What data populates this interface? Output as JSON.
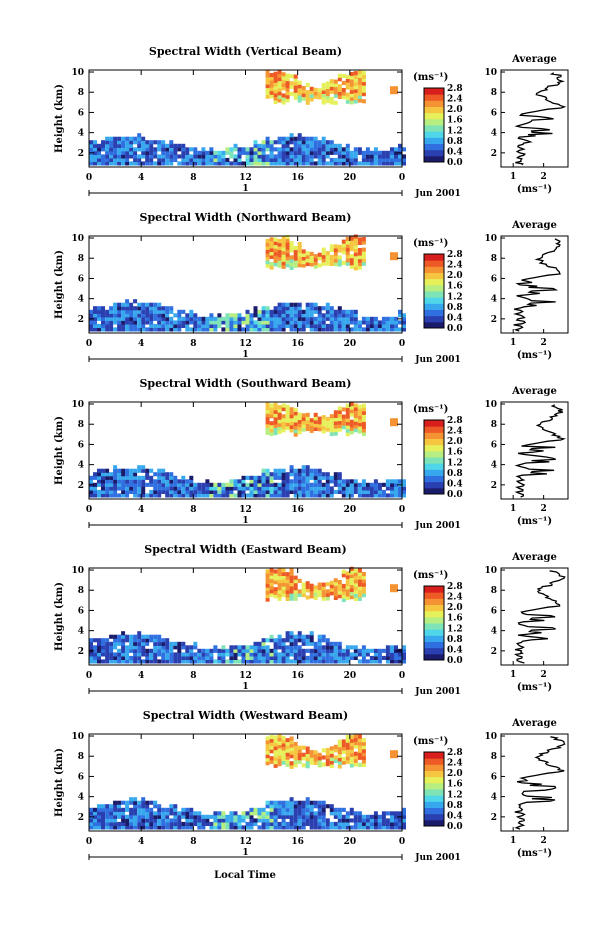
{
  "figure": {
    "x_axis_label": "Local Time",
    "date_label": "Jun 2001",
    "day_label": "1",
    "height_axis_label": "Height (km)",
    "unit_label": "(ms⁻¹)",
    "average_title": "Average"
  },
  "colors": {
    "scale": [
      "#1b1b6b",
      "#2a3fb0",
      "#2f6fe0",
      "#38a8ee",
      "#4fd6e8",
      "#7ee3b6",
      "#b7ee82",
      "#e6f05a",
      "#f6c640",
      "#f59233",
      "#ee5a25",
      "#d91f1d"
    ]
  },
  "chart_data": [
    {
      "type": "heatmap",
      "title": "Spectral Width (Vertical Beam)",
      "x_ticks": [
        "0",
        "4",
        "8",
        "12",
        "16",
        "20",
        "0"
      ],
      "y_ticks": [
        "2",
        "4",
        "6",
        "8",
        "10"
      ],
      "xlim": [
        0,
        24
      ],
      "ylim": [
        0.6,
        10.2
      ],
      "colorbar_ticks": [
        "0.0",
        "0.4",
        "0.8",
        "1.2",
        "1.6",
        "2.0",
        "2.4",
        "2.8"
      ],
      "profile": {
        "x_ticks": [
          "1",
          "2"
        ],
        "y_ticks": [
          "2",
          "4",
          "6",
          "8",
          "10"
        ],
        "xlim": [
          0.6,
          2.8
        ]
      }
    },
    {
      "type": "heatmap",
      "title": "Spectral Width (Northward Beam)",
      "x_ticks": [
        "0",
        "4",
        "8",
        "12",
        "16",
        "20",
        "0"
      ],
      "y_ticks": [
        "2",
        "4",
        "6",
        "8",
        "10"
      ],
      "xlim": [
        0,
        24
      ],
      "ylim": [
        0.6,
        10.2
      ],
      "colorbar_ticks": [
        "0.0",
        "0.4",
        "0.8",
        "1.2",
        "1.6",
        "2.0",
        "2.4",
        "2.8"
      ],
      "profile": {
        "x_ticks": [
          "1",
          "2"
        ],
        "y_ticks": [
          "2",
          "4",
          "6",
          "8",
          "10"
        ],
        "xlim": [
          0.6,
          2.8
        ]
      }
    },
    {
      "type": "heatmap",
      "title": "Spectral Width (Southward Beam)",
      "x_ticks": [
        "0",
        "4",
        "8",
        "12",
        "16",
        "20",
        "0"
      ],
      "y_ticks": [
        "2",
        "4",
        "6",
        "8",
        "10"
      ],
      "xlim": [
        0,
        24
      ],
      "ylim": [
        0.6,
        10.2
      ],
      "colorbar_ticks": [
        "0.0",
        "0.4",
        "0.8",
        "1.2",
        "1.6",
        "2.0",
        "2.4",
        "2.8"
      ],
      "profile": {
        "x_ticks": [
          "1",
          "2"
        ],
        "y_ticks": [
          "2",
          "4",
          "6",
          "8",
          "10"
        ],
        "xlim": [
          0.6,
          2.8
        ]
      }
    },
    {
      "type": "heatmap",
      "title": "Spectral Width (Eastward Beam)",
      "x_ticks": [
        "0",
        "4",
        "8",
        "12",
        "16",
        "20",
        "0"
      ],
      "y_ticks": [
        "2",
        "4",
        "6",
        "8",
        "10"
      ],
      "xlim": [
        0,
        24
      ],
      "ylim": [
        0.6,
        10.2
      ],
      "colorbar_ticks": [
        "0.0",
        "0.4",
        "0.8",
        "1.2",
        "1.6",
        "2.0",
        "2.4",
        "2.8"
      ],
      "profile": {
        "x_ticks": [
          "1",
          "2"
        ],
        "y_ticks": [
          "2",
          "4",
          "6",
          "8",
          "10"
        ],
        "xlim": [
          0.6,
          2.8
        ]
      }
    },
    {
      "type": "heatmap",
      "title": "Spectral Width (Westward Beam)",
      "x_ticks": [
        "0",
        "4",
        "8",
        "12",
        "16",
        "20",
        "0"
      ],
      "y_ticks": [
        "2",
        "4",
        "6",
        "8",
        "10"
      ],
      "xlim": [
        0,
        24
      ],
      "ylim": [
        0.6,
        10.2
      ],
      "colorbar_ticks": [
        "0.0",
        "0.4",
        "0.8",
        "1.2",
        "1.6",
        "2.0",
        "2.4",
        "2.8"
      ],
      "profile": {
        "x_ticks": [
          "1",
          "2"
        ],
        "y_ticks": [
          "2",
          "4",
          "6",
          "8",
          "10"
        ],
        "xlim": [
          0.6,
          2.8
        ]
      }
    }
  ]
}
